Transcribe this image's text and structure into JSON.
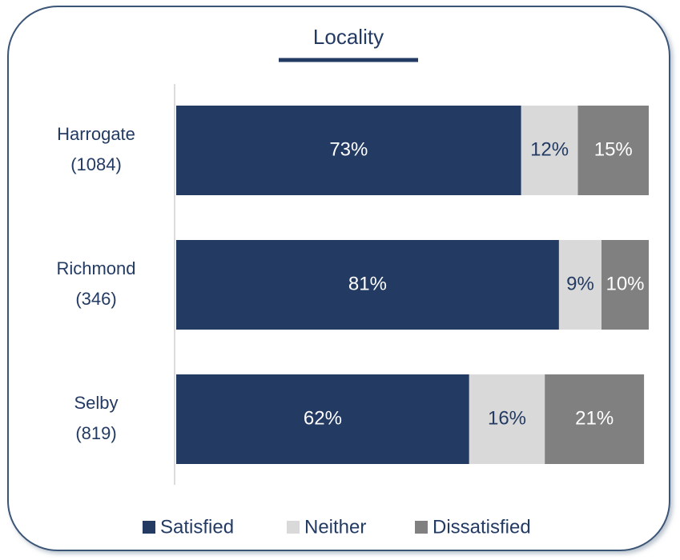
{
  "chart_data": {
    "type": "stacked_bar_horizontal",
    "title": "Locality",
    "categories": [
      [
        "Harrogate",
        "(1084)"
      ],
      [
        "Richmond",
        "(346)"
      ],
      [
        "Selby",
        "(819)"
      ]
    ],
    "series": [
      {
        "name": "Satisfied",
        "color": "#233a63",
        "values": [
          73,
          81,
          62
        ],
        "value_labels": [
          "73%",
          "81%",
          "62%"
        ],
        "label_color": "#ffffff"
      },
      {
        "name": "Neither",
        "color": "#d9d9d9",
        "values": [
          12,
          9,
          16
        ],
        "value_labels": [
          "12%",
          "9%",
          "16%"
        ],
        "label_color": "#233a63"
      },
      {
        "name": "Dissatisfied",
        "color": "#808080",
        "values": [
          15,
          10,
          21
        ],
        "value_labels": [
          "15%",
          "10%",
          "21%"
        ],
        "label_color": "#ffffff"
      }
    ],
    "xlim": [
      0,
      100
    ]
  }
}
